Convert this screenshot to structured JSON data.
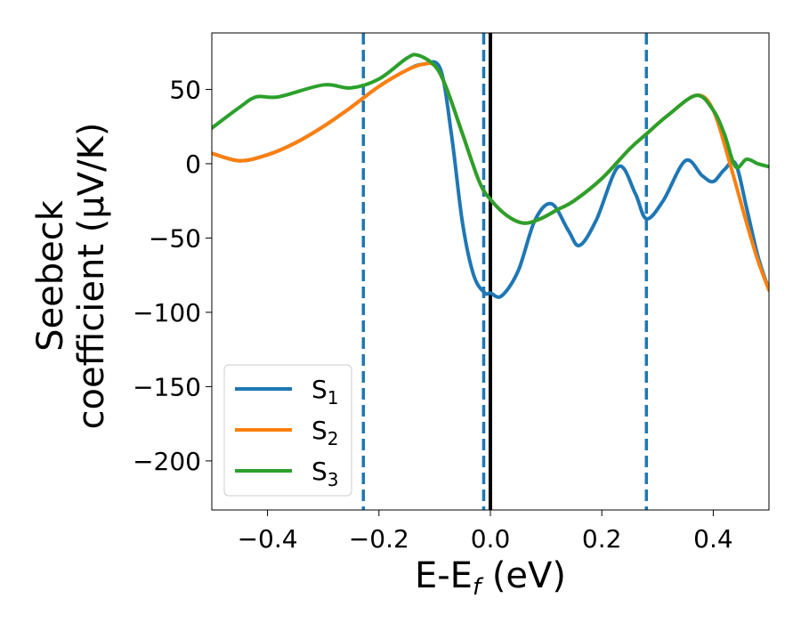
{
  "chart_data": {
    "type": "line",
    "xlabel": "E-E",
    "xlabel_sub": "f",
    "xlabel_unit": " (eV)",
    "ylabel_line1": "Seebeck",
    "ylabel_line2": "coefficient  (μV/K)",
    "xlim": [
      -0.5,
      0.5
    ],
    "ylim": [
      -233,
      88
    ],
    "xticks": [
      -0.4,
      -0.2,
      0.0,
      0.2,
      0.4
    ],
    "xtick_labels": [
      "−0.4",
      "−0.2",
      "0.0",
      "0.2",
      "0.4"
    ],
    "yticks": [
      50,
      0,
      -50,
      -100,
      -150,
      -200
    ],
    "ytick_labels": [
      "50",
      "0",
      "−50",
      "−100",
      "−150",
      "−200"
    ],
    "vlines": [
      {
        "x": -0.228,
        "style": "dashed",
        "color": "#1f77b4"
      },
      {
        "x": -0.012,
        "style": "dashed",
        "color": "#1f77b4"
      },
      {
        "x": 0.0,
        "style": "solid",
        "color": "#000000"
      },
      {
        "x": 0.28,
        "style": "dashed",
        "color": "#1f77b4"
      }
    ],
    "legend": {
      "placement": "lower-left"
    },
    "series": [
      {
        "name": "S",
        "sub": "1",
        "color": "#1f77b4",
        "x": [
          -0.5,
          -0.45,
          -0.4,
          -0.35,
          -0.3,
          -0.25,
          -0.2,
          -0.15,
          -0.12,
          -0.09,
          -0.07,
          -0.05,
          -0.03,
          -0.01,
          0.0,
          0.02,
          0.05,
          0.08,
          0.11,
          0.14,
          0.16,
          0.19,
          0.23,
          0.26,
          0.28,
          0.31,
          0.35,
          0.38,
          0.4,
          0.42,
          0.44,
          0.46,
          0.48,
          0.5
        ],
        "y": [
          7,
          2,
          6,
          14,
          25,
          38,
          52,
          63,
          67,
          64,
          20,
          -40,
          -75,
          -87,
          -87,
          -89,
          -72,
          -38,
          -27,
          -45,
          -55,
          -38,
          -2,
          -20,
          -37,
          -25,
          2,
          -8,
          -12,
          -4,
          0,
          -30,
          -62,
          -85
        ]
      },
      {
        "name": "S",
        "sub": "2",
        "color": "#ff7f0e",
        "x": [
          -0.5,
          -0.45,
          -0.4,
          -0.35,
          -0.3,
          -0.25,
          -0.2,
          -0.15,
          -0.12,
          -0.1,
          -0.08,
          -0.05,
          -0.02,
          0.0,
          0.03,
          0.06,
          0.09,
          0.12,
          0.15,
          0.2,
          0.25,
          0.28,
          0.32,
          0.37,
          0.4,
          0.43,
          0.46,
          0.48,
          0.5
        ],
        "y": [
          7,
          2,
          6,
          14,
          25,
          38,
          52,
          63,
          67,
          66,
          52,
          20,
          -12,
          -24,
          -35,
          -40,
          -37,
          -31,
          -25,
          -10,
          10,
          20,
          33,
          46,
          36,
          0,
          -40,
          -65,
          -85
        ]
      },
      {
        "name": "S",
        "sub": "3",
        "color": "#2ca02c",
        "x": [
          -0.5,
          -0.45,
          -0.42,
          -0.38,
          -0.3,
          -0.25,
          -0.2,
          -0.15,
          -0.13,
          -0.1,
          -0.08,
          -0.05,
          -0.02,
          0.0,
          0.03,
          0.06,
          0.09,
          0.12,
          0.15,
          0.2,
          0.25,
          0.28,
          0.32,
          0.37,
          0.4,
          0.42,
          0.44,
          0.46,
          0.48,
          0.5
        ],
        "y": [
          24,
          38,
          45,
          45,
          53,
          51,
          57,
          71,
          73,
          66,
          52,
          20,
          -12,
          -24,
          -35,
          -40,
          -37,
          -31,
          -25,
          -10,
          10,
          20,
          33,
          46,
          36,
          20,
          -2,
          3,
          0,
          -2
        ]
      }
    ]
  }
}
